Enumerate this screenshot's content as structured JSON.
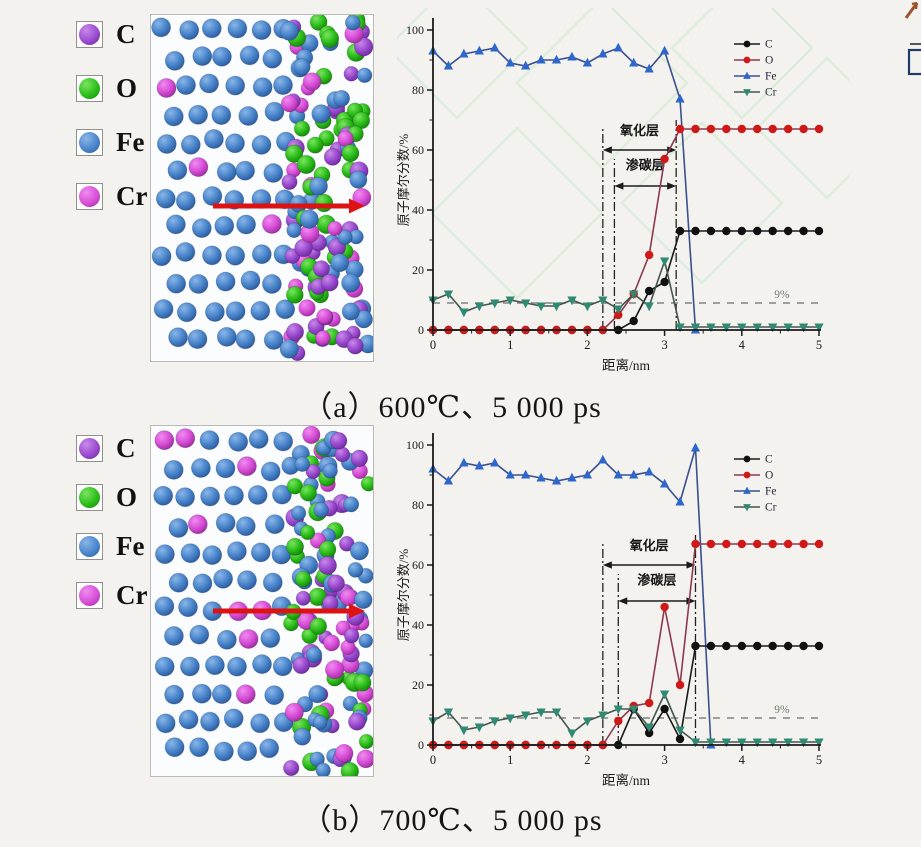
{
  "figure": {
    "panel_a_caption": "（a）600℃、5 000 ps",
    "panel_b_caption": "（b）700℃、5 000 ps"
  },
  "atom_legend": {
    "items": [
      {
        "label": "C",
        "color": "#9a4ad0",
        "color_light": "#c98ae8",
        "color_dark": "#6c2b9a"
      },
      {
        "label": "O",
        "color": "#2bbf1a",
        "color_light": "#7ce460",
        "color_dark": "#158409"
      },
      {
        "label": "Fe",
        "color": "#4a86cc",
        "color_light": "#8ab6e8",
        "color_dark": "#2c5a9c"
      },
      {
        "label": "Cr",
        "color": "#d84fd8",
        "color_light": "#f08cf0",
        "color_dark": "#a02ba0"
      }
    ]
  },
  "mol_arrow_color": "#dd1212",
  "watermark_color": "#d9ecd7",
  "chart_data": [
    {
      "type": "line",
      "title": "(a) 600℃、5 000 ps",
      "xlabel": "距离/nm",
      "ylabel": "原子摩尔分数/%",
      "xlim": [
        0,
        5
      ],
      "ylim": [
        0,
        100
      ],
      "x_ticks": [
        0,
        1,
        2,
        3,
        4,
        5
      ],
      "y_ticks": [
        0,
        20,
        40,
        60,
        80,
        100
      ],
      "grid": false,
      "legend_position": "top-right",
      "x": [
        0,
        0.2,
        0.4,
        0.6,
        0.8,
        1.0,
        1.2,
        1.4,
        1.6,
        1.8,
        2.0,
        2.2,
        2.4,
        2.6,
        2.8,
        3.0,
        3.2,
        3.4,
        3.6,
        3.8,
        4.0,
        4.2,
        4.4,
        4.6,
        4.8,
        5.0
      ],
      "series": [
        {
          "name": "C",
          "marker": "circle",
          "marker_color": "#101010",
          "line_color": "#1a1a1a",
          "values": [
            0,
            0,
            0,
            0,
            0,
            0,
            0,
            0,
            0,
            0,
            0,
            0,
            0,
            3,
            13,
            16,
            33,
            33,
            33,
            33,
            33,
            33,
            33,
            33,
            33,
            33
          ]
        },
        {
          "name": "O",
          "marker": "circle",
          "marker_color": "#cf1818",
          "line_color": "#8c3a50",
          "values": [
            0,
            0,
            0,
            0,
            0,
            0,
            0,
            0,
            0,
            0,
            0,
            0,
            5,
            12,
            25,
            57,
            67,
            67,
            67,
            67,
            67,
            67,
            67,
            67,
            67,
            67
          ]
        },
        {
          "name": "Fe",
          "marker": "triangle_up",
          "marker_color": "#2e66cc",
          "line_color": "#3a4f8f",
          "values": [
            93,
            88,
            92,
            93,
            94,
            89,
            88,
            90,
            90,
            91,
            89,
            92,
            94,
            89,
            87,
            93,
            77,
            0,
            null,
            null,
            null,
            null,
            null,
            null,
            null,
            null
          ]
        },
        {
          "name": "Cr",
          "marker": "triangle_down",
          "marker_color": "#2e8a72",
          "line_color": "#44564e",
          "values": [
            10,
            12,
            6,
            8,
            9,
            10,
            9,
            8,
            8,
            10,
            8,
            10,
            7,
            12,
            8,
            23,
            1,
            1,
            1,
            1,
            1,
            1,
            1,
            1,
            1,
            1
          ]
        }
      ],
      "reference_line": {
        "value": 9,
        "label": "9%"
      },
      "layers": [
        {
          "label": "氧化层",
          "from_nm": 2.2,
          "to_nm": 3.15
        },
        {
          "label": "渗碳层",
          "from_nm": 2.35,
          "to_nm": 3.15
        }
      ]
    },
    {
      "type": "line",
      "title": "(b) 700℃、5 000 ps",
      "xlabel": "距离/nm",
      "ylabel": "原子摩尔分数/%",
      "xlim": [
        0,
        5
      ],
      "ylim": [
        0,
        100
      ],
      "x_ticks": [
        0,
        1,
        2,
        3,
        4,
        5
      ],
      "y_ticks": [
        0,
        20,
        40,
        60,
        80,
        100
      ],
      "grid": false,
      "legend_position": "top-right",
      "x": [
        0,
        0.2,
        0.4,
        0.6,
        0.8,
        1.0,
        1.2,
        1.4,
        1.6,
        1.8,
        2.0,
        2.2,
        2.4,
        2.6,
        2.8,
        3.0,
        3.2,
        3.4,
        3.6,
        3.8,
        4.0,
        4.2,
        4.4,
        4.6,
        4.8,
        5.0
      ],
      "series": [
        {
          "name": "C",
          "marker": "circle",
          "marker_color": "#101010",
          "line_color": "#1a1a1a",
          "values": [
            0,
            0,
            0,
            0,
            0,
            0,
            0,
            0,
            0,
            0,
            0,
            0,
            0,
            12,
            4,
            12,
            2,
            33,
            33,
            33,
            33,
            33,
            33,
            33,
            33,
            33
          ]
        },
        {
          "name": "O",
          "marker": "circle",
          "marker_color": "#cf1818",
          "line_color": "#8c3a50",
          "values": [
            0,
            0,
            0,
            0,
            0,
            0,
            0,
            0,
            0,
            0,
            0,
            0,
            8,
            13,
            14,
            46,
            20,
            67,
            67,
            67,
            67,
            67,
            67,
            67,
            67,
            67
          ]
        },
        {
          "name": "Fe",
          "marker": "triangle_up",
          "marker_color": "#2e66cc",
          "line_color": "#3a4f8f",
          "values": [
            92,
            88,
            94,
            93,
            94,
            90,
            90,
            89,
            88,
            89,
            90,
            95,
            90,
            90,
            91,
            87,
            81,
            99,
            0,
            null,
            null,
            null,
            null,
            null,
            null,
            null
          ]
        },
        {
          "name": "Cr",
          "marker": "triangle_down",
          "marker_color": "#2e8a72",
          "line_color": "#44564e",
          "values": [
            8,
            11,
            5,
            6,
            8,
            9,
            10,
            11,
            11,
            4,
            8,
            10,
            12,
            12,
            6,
            17,
            5,
            1,
            1,
            1,
            1,
            1,
            1,
            1,
            1,
            1
          ]
        }
      ],
      "reference_line": {
        "value": 9,
        "label": "9%"
      },
      "layers": [
        {
          "label": "氧化层",
          "from_nm": 2.2,
          "to_nm": 3.4
        },
        {
          "label": "渗碳层",
          "from_nm": 2.4,
          "to_nm": 3.4
        }
      ]
    }
  ]
}
